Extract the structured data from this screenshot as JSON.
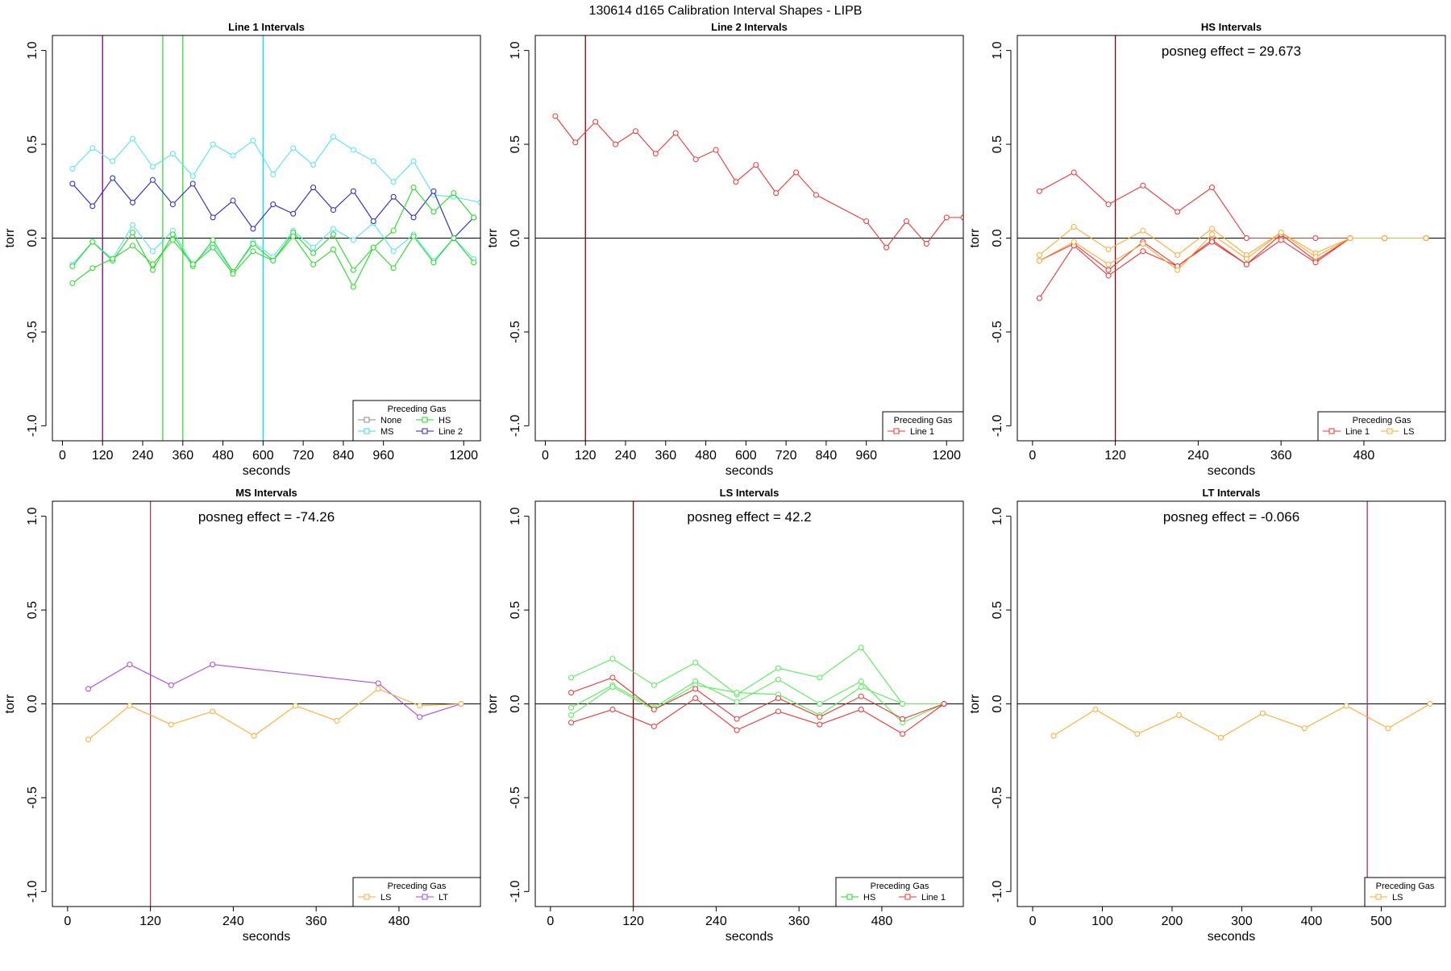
{
  "figure_title": "130614   d165   Calibration Interval Shapes - LIPB",
  "chart_data": [
    {
      "type": "line",
      "title": "Line 1 Intervals",
      "xlabel": "seconds",
      "ylabel": "torr",
      "xlim": [
        -30,
        1250
      ],
      "ylim": [
        -1.08,
        1.08
      ],
      "xticks": [
        0,
        120,
        240,
        360,
        480,
        600,
        720,
        840,
        960,
        1200
      ],
      "yticks": [
        -1.0,
        -0.5,
        0.0,
        0.5,
        1.0
      ],
      "ytick_labels": [
        "-1.0",
        "-0.5",
        "0.0",
        "0.5",
        "1.0"
      ],
      "vlines": [
        {
          "x": 120,
          "color": "#800080"
        },
        {
          "x": 300,
          "color": "#33dd33"
        },
        {
          "x": 360,
          "color": "#33dd33"
        },
        {
          "x": 600,
          "color": "#00e5ee"
        }
      ],
      "annotation": "",
      "legend": {
        "title": "Preceding Gas",
        "entries": [
          {
            "label": "None",
            "color": "#888888"
          },
          {
            "label": "HS",
            "color": "#22dd22"
          },
          {
            "label": "MS",
            "color": "#33dddd"
          },
          {
            "label": "Line 2",
            "color": "#2222cc"
          }
        ],
        "columns": 2
      },
      "series": [
        {
          "color": "#55e5ee",
          "x": [
            30,
            90,
            150,
            210,
            270,
            330,
            390,
            450,
            510,
            570,
            630,
            690,
            750,
            810,
            870,
            930,
            990,
            1050,
            1110,
            1170,
            1250
          ],
          "y": [
            0.37,
            0.48,
            0.41,
            0.53,
            0.38,
            0.45,
            0.33,
            0.5,
            0.44,
            0.52,
            0.34,
            0.48,
            0.39,
            0.54,
            0.47,
            0.41,
            0.3,
            0.41,
            0.23,
            0.22,
            0.19
          ]
        },
        {
          "color": "#55e5ee",
          "x": [
            30,
            90,
            150,
            210,
            270,
            330,
            390,
            450,
            510,
            570,
            630,
            690,
            750,
            810,
            870,
            930,
            990,
            1050,
            1110,
            1170,
            1230
          ],
          "y": [
            -0.14,
            -0.02,
            -0.11,
            0.07,
            -0.07,
            0.04,
            -0.14,
            -0.03,
            -0.18,
            -0.02,
            -0.1,
            0.04,
            -0.05,
            0.05,
            -0.01,
            0.08,
            -0.07,
            0.02,
            -0.12,
            0.0,
            -0.11
          ]
        },
        {
          "color": "#2222cc",
          "x": [
            30,
            90,
            150,
            210,
            270,
            330,
            390,
            450,
            510,
            570,
            630,
            690,
            750,
            810,
            870,
            930,
            990,
            1050,
            1110,
            1170,
            1230
          ],
          "y": [
            0.29,
            0.17,
            0.32,
            0.19,
            0.31,
            0.18,
            0.29,
            0.11,
            0.2,
            0.05,
            0.18,
            0.13,
            0.27,
            0.15,
            0.25,
            0.09,
            0.22,
            0.11,
            0.25,
            0.0,
            0.11
          ]
        },
        {
          "color": "#22dd22",
          "x": [
            30,
            90,
            150,
            210,
            270,
            330,
            390,
            450,
            510,
            570,
            630,
            690,
            750,
            810,
            870,
            930,
            990,
            1050,
            1110,
            1170,
            1230
          ],
          "y": [
            -0.15,
            -0.02,
            -0.12,
            0.03,
            -0.17,
            0.02,
            -0.15,
            -0.01,
            -0.18,
            -0.03,
            -0.12,
            0.03,
            -0.08,
            0.02,
            -0.17,
            -0.05,
            0.04,
            0.27,
            0.14,
            0.24,
            0.11
          ]
        },
        {
          "color": "#22dd22",
          "x": [
            30,
            90,
            150,
            210,
            270,
            330,
            390,
            450,
            510,
            570,
            630,
            690,
            750,
            810,
            870,
            930,
            990,
            1050,
            1110,
            1170,
            1230
          ],
          "y": [
            -0.24,
            -0.16,
            -0.11,
            -0.04,
            -0.14,
            -0.01,
            -0.14,
            -0.05,
            -0.19,
            -0.07,
            -0.12,
            0.01,
            -0.14,
            -0.06,
            -0.26,
            -0.05,
            -0.16,
            0.01,
            -0.13,
            0.0,
            -0.13
          ]
        }
      ]
    },
    {
      "type": "line",
      "title": "Line 2 Intervals",
      "xlabel": "seconds",
      "ylabel": "torr",
      "xlim": [
        -30,
        1250
      ],
      "ylim": [
        -1.08,
        1.08
      ],
      "xticks": [
        0,
        120,
        240,
        360,
        480,
        600,
        720,
        840,
        960,
        1200
      ],
      "yticks": [
        -1.0,
        -0.5,
        0.0,
        0.5,
        1.0
      ],
      "ytick_labels": [
        "-1.0",
        "-0.5",
        "0.0",
        "0.5",
        "1.0"
      ],
      "vlines": [
        {
          "x": 120,
          "color": "#8b0000"
        }
      ],
      "annotation": "",
      "legend": {
        "title": "Preceding Gas",
        "entries": [
          {
            "label": "Line 1",
            "color": "#ee3333"
          }
        ],
        "columns": 1
      },
      "series": [
        {
          "color": "#ee3333",
          "x": [
            30,
            90,
            150,
            210,
            270,
            330,
            390,
            450,
            510,
            570,
            630,
            690,
            750,
            810,
            960,
            1020,
            1080,
            1140,
            1200,
            1250
          ],
          "y": [
            0.65,
            0.51,
            0.62,
            0.5,
            0.57,
            0.45,
            0.56,
            0.42,
            0.47,
            0.3,
            0.39,
            0.24,
            0.35,
            0.23,
            0.09,
            -0.05,
            0.09,
            -0.03,
            0.11,
            0.11
          ]
        }
      ]
    },
    {
      "type": "line",
      "title": "HS Intervals",
      "xlabel": "seconds",
      "ylabel": "torr",
      "xlim": [
        -22,
        598
      ],
      "ylim": [
        -1.08,
        1.08
      ],
      "xticks": [
        0,
        120,
        240,
        360,
        480
      ],
      "yticks": [
        -1.0,
        -0.5,
        0.0,
        0.5,
        1.0
      ],
      "ytick_labels": [
        "-1.0",
        "-0.5",
        "0.0",
        "0.5",
        "1.0"
      ],
      "vlines": [
        {
          "x": 120,
          "color": "#8b0000"
        }
      ],
      "annotation": "posneg effect = 29.673",
      "legend": {
        "title": "Preceding Gas",
        "entries": [
          {
            "label": "Line 1",
            "color": "#ee3333"
          },
          {
            "label": "LS",
            "color": "#ffaa33"
          }
        ],
        "columns": 2
      },
      "series": [
        {
          "color": "#ee3333",
          "x": [
            10,
            60,
            110,
            160,
            210,
            260,
            310,
            360,
            410,
            460,
            510,
            570
          ],
          "y": [
            0.25,
            0.35,
            0.18,
            0.28,
            0.14,
            0.27,
            0.0,
            0.0,
            0.0,
            0.0,
            0.0,
            0.0
          ]
        },
        {
          "color": "#ee3333",
          "x": [
            10,
            60,
            110,
            160,
            210,
            260,
            310,
            360,
            410,
            460,
            510,
            570
          ],
          "y": [
            -0.12,
            -0.03,
            -0.17,
            -0.02,
            -0.15,
            -0.01,
            -0.14,
            0.02,
            -0.12,
            0.0,
            0.0,
            0.0
          ]
        },
        {
          "color": "#ee3333",
          "x": [
            10,
            60,
            110,
            160,
            210,
            260,
            310,
            360,
            410,
            460,
            510,
            570
          ],
          "y": [
            -0.32,
            -0.04,
            -0.2,
            -0.07,
            -0.15,
            -0.02,
            -0.14,
            -0.01,
            -0.13,
            0.0,
            0.0,
            0.0
          ]
        },
        {
          "color": "#ffaa33",
          "x": [
            10,
            60,
            110,
            160,
            210,
            260,
            310,
            360,
            410,
            460,
            510,
            570
          ],
          "y": [
            -0.09,
            0.06,
            -0.06,
            0.04,
            -0.09,
            0.05,
            -0.09,
            0.03,
            -0.08,
            0.0,
            0.0,
            0.0
          ]
        },
        {
          "color": "#ffaa33",
          "x": [
            10,
            60,
            110,
            160,
            210,
            260,
            310,
            360,
            410,
            460,
            510,
            570
          ],
          "y": [
            -0.12,
            -0.02,
            -0.14,
            -0.03,
            -0.17,
            0.02,
            -0.11,
            0.03,
            -0.1,
            0.0,
            0.0,
            0.0
          ]
        }
      ]
    },
    {
      "type": "line",
      "title": "MS Intervals",
      "xlabel": "seconds",
      "ylabel": "torr",
      "xlim": [
        -22,
        598
      ],
      "ylim": [
        -1.08,
        1.08
      ],
      "xticks": [
        0,
        120,
        240,
        360,
        480
      ],
      "yticks": [
        -1.0,
        -0.5,
        0.0,
        0.5,
        1.0
      ],
      "ytick_labels": [
        "-1.0",
        "-0.5",
        "0.0",
        "0.5",
        "1.0"
      ],
      "vlines": [
        {
          "x": 120,
          "color": "#aa3366"
        }
      ],
      "annotation": "posneg effect = -74.26",
      "legend": {
        "title": "Preceding Gas",
        "entries": [
          {
            "label": "LS",
            "color": "#ffaa33"
          },
          {
            "label": "LT",
            "color": "#aa44dd"
          }
        ],
        "columns": 2
      },
      "series": [
        {
          "color": "#aa44dd",
          "x": [
            30,
            90,
            150,
            210,
            450,
            510,
            570
          ],
          "y": [
            0.08,
            0.21,
            0.1,
            0.21,
            0.11,
            -0.07,
            0.0
          ]
        },
        {
          "color": "#ffaa33",
          "x": [
            30,
            90,
            150,
            210,
            270,
            330,
            390,
            450,
            510,
            570
          ],
          "y": [
            -0.19,
            -0.01,
            -0.11,
            -0.04,
            -0.17,
            -0.01,
            -0.09,
            0.08,
            -0.01,
            0.0
          ]
        }
      ]
    },
    {
      "type": "line",
      "title": "LS Intervals",
      "xlabel": "seconds",
      "ylabel": "torr",
      "xlim": [
        -22,
        598
      ],
      "ylim": [
        -1.08,
        1.08
      ],
      "xticks": [
        0,
        120,
        240,
        360,
        480
      ],
      "yticks": [
        -1.0,
        -0.5,
        0.0,
        0.5,
        1.0
      ],
      "ytick_labels": [
        "-1.0",
        "-0.5",
        "0.0",
        "0.5",
        "1.0"
      ],
      "vlines": [
        {
          "x": 120,
          "color": "#8b0000"
        }
      ],
      "annotation": "posneg effect = 42.2",
      "legend": {
        "title": "Preceding Gas",
        "entries": [
          {
            "label": "HS",
            "color": "#22dd22"
          },
          {
            "label": "Line 1",
            "color": "#ee3333"
          }
        ],
        "columns": 2
      },
      "series": [
        {
          "color": "#55ee55",
          "x": [
            30,
            90,
            150,
            210,
            270,
            330,
            390,
            450,
            510,
            570
          ],
          "y": [
            0.14,
            0.24,
            0.1,
            0.22,
            0.05,
            0.19,
            0.14,
            0.3,
            0.0,
            0.0
          ]
        },
        {
          "color": "#55ee55",
          "x": [
            30,
            90,
            150,
            210,
            270,
            330,
            390,
            450,
            510,
            570
          ],
          "y": [
            -0.02,
            0.1,
            -0.02,
            0.12,
            0.01,
            0.13,
            0.0,
            0.12,
            -0.1,
            0.0
          ]
        },
        {
          "color": "#55ee55",
          "x": [
            30,
            90,
            150,
            210,
            270,
            330,
            390,
            450,
            510,
            570
          ],
          "y": [
            -0.06,
            0.09,
            -0.03,
            0.1,
            0.06,
            0.05,
            -0.06,
            0.09,
            0.0,
            0.0
          ]
        },
        {
          "color": "#ee3333",
          "x": [
            30,
            90,
            150,
            210,
            270,
            330,
            390,
            450,
            510,
            570
          ],
          "y": [
            0.06,
            0.14,
            -0.03,
            0.08,
            -0.08,
            0.03,
            -0.07,
            0.04,
            -0.08,
            0.0
          ]
        },
        {
          "color": "#ee3333",
          "x": [
            30,
            90,
            150,
            210,
            270,
            330,
            390,
            450,
            510,
            570
          ],
          "y": [
            -0.1,
            -0.03,
            -0.12,
            0.03,
            -0.14,
            -0.04,
            -0.11,
            -0.03,
            -0.16,
            0.0
          ]
        }
      ]
    },
    {
      "type": "line",
      "title": "LT Intervals",
      "xlabel": "seconds",
      "ylabel": "torr",
      "xlim": [
        -22,
        592
      ],
      "ylim": [
        -1.08,
        1.08
      ],
      "xticks": [
        0,
        100,
        200,
        300,
        400,
        500
      ],
      "yticks": [
        -1.0,
        -0.5,
        0.0,
        0.5,
        1.0
      ],
      "ytick_labels": [
        "-1.0",
        "-0.5",
        "0.0",
        "0.5",
        "1.0"
      ],
      "vlines": [
        {
          "x": 480,
          "color": "#aa3366"
        }
      ],
      "annotation": "posneg effect = -0.066",
      "legend": {
        "title": "Preceding Gas",
        "entries": [
          {
            "label": "LS",
            "color": "#ffaa33"
          }
        ],
        "columns": 1
      },
      "series": [
        {
          "color": "#ffaa33",
          "x": [
            30,
            90,
            150,
            210,
            270,
            330,
            390,
            450,
            510,
            570
          ],
          "y": [
            -0.17,
            -0.03,
            -0.16,
            -0.06,
            -0.18,
            -0.05,
            -0.13,
            -0.01,
            -0.13,
            0.0
          ]
        }
      ]
    }
  ]
}
